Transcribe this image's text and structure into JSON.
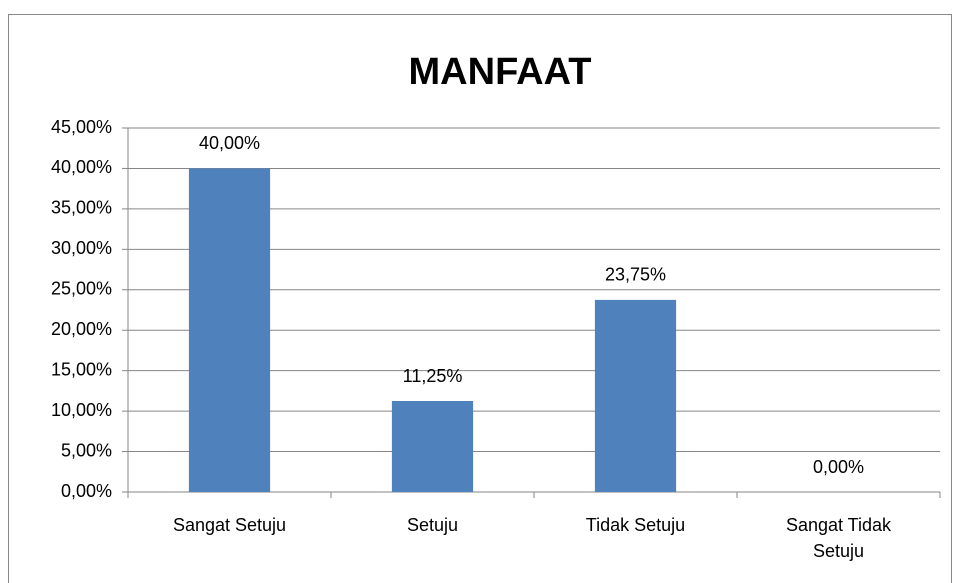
{
  "chart_data": {
    "type": "bar",
    "title": "MANFAAT",
    "categories": [
      "Sangat Setuju",
      "Setuju",
      "Tidak Setuju",
      "Sangat Tidak Setuju"
    ],
    "values": [
      40,
      11.25,
      23.75,
      0
    ],
    "value_labels": [
      "40,00%",
      "11,25%",
      "23,75%",
      "0,00%"
    ],
    "color": "#4f81bd",
    "ylim": [
      0,
      45
    ],
    "yticks": [
      {
        "value": 0,
        "label": "0,00%"
      },
      {
        "value": 5,
        "label": "5,00%"
      },
      {
        "value": 10,
        "label": "10,00%"
      },
      {
        "value": 15,
        "label": "15,00%"
      },
      {
        "value": 20,
        "label": "20,00%"
      },
      {
        "value": 25,
        "label": "25,00%"
      },
      {
        "value": 30,
        "label": "30,00%"
      },
      {
        "value": 35,
        "label": "35,00%"
      },
      {
        "value": 40,
        "label": "40,00%"
      },
      {
        "value": 45,
        "label": "45,00%"
      }
    ],
    "grid": true
  }
}
